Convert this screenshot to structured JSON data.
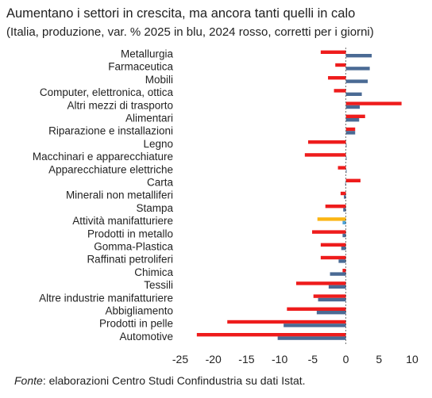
{
  "title": "Aumentano i settori in crescita, ma ancora tanti quelli in calo",
  "subtitle": "(Italia, produzione, var. % 2025 in blu, 2024 rosso, corretti per i giorni)",
  "source": {
    "lead": "Fonte",
    "text": ": elaborazioni Centro Studi Confindustria su dati Istat."
  },
  "chart_data": {
    "type": "bar",
    "orientation": "horizontal",
    "categories": [
      "Metallurgia",
      "Farmaceutica",
      "Mobili",
      "Computer, elettronica, ottica",
      "Altri mezzi di trasporto",
      "Alimentari",
      "Riparazione e installazioni",
      "Legno",
      "Macchinari e apparecchiature",
      "Apparecchiature elettriche",
      "Carta",
      "Minerali non metalliferi",
      "Stampa",
      "Attività manifatturiere",
      "Prodotti in metallo",
      "Gomma-Plastica",
      "Raffinati petroliferi",
      "Chimica",
      "Tessili",
      "Altre industrie manifatturiere",
      "Abbigliamento",
      "Prodotti in pelle",
      "Automotive"
    ],
    "series": [
      {
        "key": "2024",
        "color": "#ee1c1c",
        "highlight_color": "#fbb514",
        "values": [
          -3.8,
          -1.6,
          -2.7,
          -1.8,
          8.4,
          2.9,
          1.4,
          -5.7,
          -6.2,
          -1.2,
          2.2,
          -0.8,
          -3.1,
          -4.3,
          -5.1,
          -3.8,
          -3.8,
          -0.5,
          -7.5,
          -4.9,
          -8.9,
          -17.9,
          -22.5
        ]
      },
      {
        "key": "2025",
        "color": "#4a6a94",
        "highlight_color": "#4ba3d9",
        "values": [
          3.9,
          3.6,
          3.3,
          2.4,
          2.1,
          2.0,
          1.4,
          0.1,
          0.1,
          0.1,
          -0.1,
          -0.3,
          -0.4,
          -0.5,
          -0.5,
          -0.7,
          -1.1,
          -2.4,
          -2.6,
          -4.2,
          -4.4,
          -9.4,
          -10.3
        ]
      }
    ],
    "highlight_category": "Attività manifatturiere",
    "xlim": [
      -25,
      10
    ],
    "xticks": [
      -25,
      -20,
      -15,
      -10,
      -5,
      0,
      5,
      10
    ],
    "grid": false,
    "legend": "none"
  }
}
